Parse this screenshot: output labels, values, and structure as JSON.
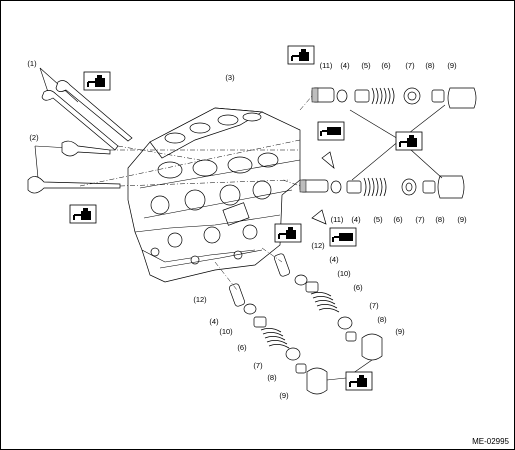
{
  "figure": {
    "code": "ME-02995",
    "callouts": {
      "c1": "(1)",
      "c2": "(2)",
      "c3": "(3)",
      "c4a": "(4)",
      "c4b": "(4)",
      "c4c": "(4)",
      "c4d": "(4)",
      "c5a": "(5)",
      "c5b": "(5)",
      "c6a": "(6)",
      "c6b": "(6)",
      "c6c": "(6)",
      "c6d": "(6)",
      "c7a": "(7)",
      "c7b": "(7)",
      "c7c": "(7)",
      "c7d": "(7)",
      "c8a": "(8)",
      "c8b": "(8)",
      "c8c": "(8)",
      "c8d": "(8)",
      "c9a": "(9)",
      "c9b": "(9)",
      "c9c": "(9)",
      "c9d": "(9)",
      "c10a": "(10)",
      "c10b": "(10)",
      "c11a": "(11)",
      "c11b": "(11)",
      "c12a": "(12)",
      "c12b": "(12)"
    },
    "icons": [
      "oil-can-icon",
      "grease-gun-icon"
    ]
  }
}
